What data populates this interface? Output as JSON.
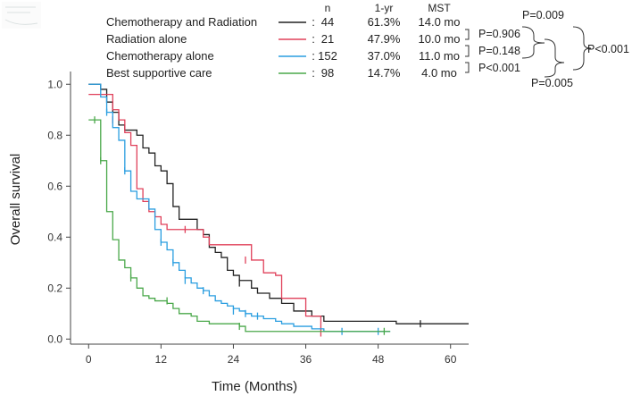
{
  "chart_data": {
    "type": "line",
    "xlabel": "Time (Months)",
    "ylabel": "Overall survival",
    "xlim": [
      -3,
      63
    ],
    "ylim": [
      -0.02,
      1.05
    ],
    "x_ticks": [
      "0",
      "12",
      "24",
      "36",
      "48",
      "60"
    ],
    "y_ticks": [
      "0.0",
      "0.2",
      "0.4",
      "0.6",
      "0.8",
      "1.0"
    ],
    "legend_headers": [
      "n",
      "1-yr",
      "MST"
    ],
    "series": [
      {
        "name": "Chemotherapy and Radiation",
        "color": "#222222",
        "colon": ":",
        "n": "44",
        "one_yr": "61.3%",
        "mst": "14.0 mo",
        "steps": [
          [
            0,
            1.0
          ],
          [
            1,
            1.0
          ],
          [
            2,
            0.98
          ],
          [
            3,
            0.93
          ],
          [
            4,
            0.89
          ],
          [
            5,
            0.84
          ],
          [
            6,
            0.82
          ],
          [
            8,
            0.8
          ],
          [
            9,
            0.75
          ],
          [
            10,
            0.73
          ],
          [
            11,
            0.68
          ],
          [
            12,
            0.66
          ],
          [
            13,
            0.61
          ],
          [
            14,
            0.52
          ],
          [
            15,
            0.47
          ],
          [
            18,
            0.43
          ],
          [
            19,
            0.41
          ],
          [
            20,
            0.36
          ],
          [
            21,
            0.34
          ],
          [
            22,
            0.32
          ],
          [
            23,
            0.27
          ],
          [
            24,
            0.25
          ],
          [
            25,
            0.23
          ],
          [
            27,
            0.2
          ],
          [
            28,
            0.18
          ],
          [
            30,
            0.16
          ],
          [
            32,
            0.14
          ],
          [
            34,
            0.11
          ],
          [
            37,
            0.09
          ],
          [
            39,
            0.07
          ],
          [
            50,
            0.07
          ],
          [
            51,
            0.06
          ],
          [
            63,
            0.06
          ]
        ],
        "censor": [
          [
            25,
            0.22
          ],
          [
            55,
            0.06
          ]
        ]
      },
      {
        "name": "Radiation alone",
        "color": "#e0405a",
        "colon": ":",
        "n": "21",
        "one_yr": "47.9%",
        "mst": "10.0 mo",
        "steps": [
          [
            0,
            0.96
          ],
          [
            3,
            0.96
          ],
          [
            4,
            0.9
          ],
          [
            5,
            0.86
          ],
          [
            6,
            0.81
          ],
          [
            7,
            0.76
          ],
          [
            8,
            0.59
          ],
          [
            9,
            0.54
          ],
          [
            10,
            0.5
          ],
          [
            11,
            0.48
          ],
          [
            12,
            0.45
          ],
          [
            13,
            0.43
          ],
          [
            18,
            0.43
          ],
          [
            19,
            0.4
          ],
          [
            20,
            0.37
          ],
          [
            26,
            0.37
          ],
          [
            27,
            0.31
          ],
          [
            29,
            0.26
          ],
          [
            31,
            0.25
          ],
          [
            32,
            0.16
          ],
          [
            35,
            0.16
          ],
          [
            36,
            0.09
          ],
          [
            38,
            0.09
          ],
          [
            38.5,
            0.01
          ]
        ],
        "censor": [
          [
            4,
            0.86
          ],
          [
            16,
            0.43
          ],
          [
            26,
            0.31
          ]
        ]
      },
      {
        "name": "Chemotherapy alone",
        "color": "#2a9ee0",
        "colon": ":",
        "n": "152",
        "one_yr": "37.0%",
        "mst": "11.0 mo",
        "steps": [
          [
            0,
            1.0
          ],
          [
            1,
            1.0
          ],
          [
            2,
            0.95
          ],
          [
            3,
            0.89
          ],
          [
            4,
            0.83
          ],
          [
            5,
            0.78
          ],
          [
            6,
            0.66
          ],
          [
            7,
            0.58
          ],
          [
            8,
            0.55
          ],
          [
            10,
            0.51
          ],
          [
            11,
            0.43
          ],
          [
            12,
            0.38
          ],
          [
            13,
            0.35
          ],
          [
            14,
            0.3
          ],
          [
            15,
            0.27
          ],
          [
            16,
            0.24
          ],
          [
            17,
            0.22
          ],
          [
            18,
            0.2
          ],
          [
            19,
            0.19
          ],
          [
            20,
            0.17
          ],
          [
            21,
            0.15
          ],
          [
            22,
            0.14
          ],
          [
            23,
            0.13
          ],
          [
            24,
            0.12
          ],
          [
            25,
            0.11
          ],
          [
            26,
            0.1
          ],
          [
            27,
            0.09
          ],
          [
            29,
            0.08
          ],
          [
            31,
            0.07
          ],
          [
            32,
            0.06
          ],
          [
            34,
            0.05
          ],
          [
            37,
            0.04
          ],
          [
            39,
            0.03
          ],
          [
            50,
            0.03
          ]
        ],
        "censor": [
          [
            3,
            0.89
          ],
          [
            6,
            0.66
          ],
          [
            12,
            0.38
          ],
          [
            14,
            0.3
          ],
          [
            16,
            0.23
          ],
          [
            19,
            0.19
          ],
          [
            24,
            0.11
          ],
          [
            26,
            0.1
          ],
          [
            28,
            0.09
          ],
          [
            42,
            0.03
          ],
          [
            48,
            0.03
          ]
        ]
      },
      {
        "name": "Best supportive care",
        "color": "#4aa84a",
        "colon": ":",
        "n": "98",
        "one_yr": "14.7%",
        "mst": "4.0 mo",
        "steps": [
          [
            0,
            0.86
          ],
          [
            1,
            0.86
          ],
          [
            2,
            0.7
          ],
          [
            3,
            0.5
          ],
          [
            4,
            0.39
          ],
          [
            5,
            0.31
          ],
          [
            6,
            0.28
          ],
          [
            7,
            0.24
          ],
          [
            8,
            0.2
          ],
          [
            9,
            0.17
          ],
          [
            10,
            0.16
          ],
          [
            11,
            0.15
          ],
          [
            13,
            0.14
          ],
          [
            14,
            0.12
          ],
          [
            15,
            0.1
          ],
          [
            17,
            0.09
          ],
          [
            18,
            0.07
          ],
          [
            20,
            0.06
          ],
          [
            25,
            0.05
          ],
          [
            26,
            0.03
          ],
          [
            50,
            0.03
          ]
        ],
        "censor": [
          [
            1,
            0.86
          ],
          [
            2,
            0.7
          ],
          [
            7,
            0.24
          ],
          [
            13,
            0.15
          ],
          [
            25,
            0.05
          ],
          [
            49,
            0.03
          ]
        ]
      }
    ],
    "comparisons": [
      {
        "label": "P=0.906"
      },
      {
        "label": "P=0.148"
      },
      {
        "label": "P<0.001"
      },
      {
        "label": "P=0.009"
      },
      {
        "label": "P=0.005"
      },
      {
        "label": "P<0.001"
      }
    ],
    "grid": false,
    "legend_position": "top"
  }
}
